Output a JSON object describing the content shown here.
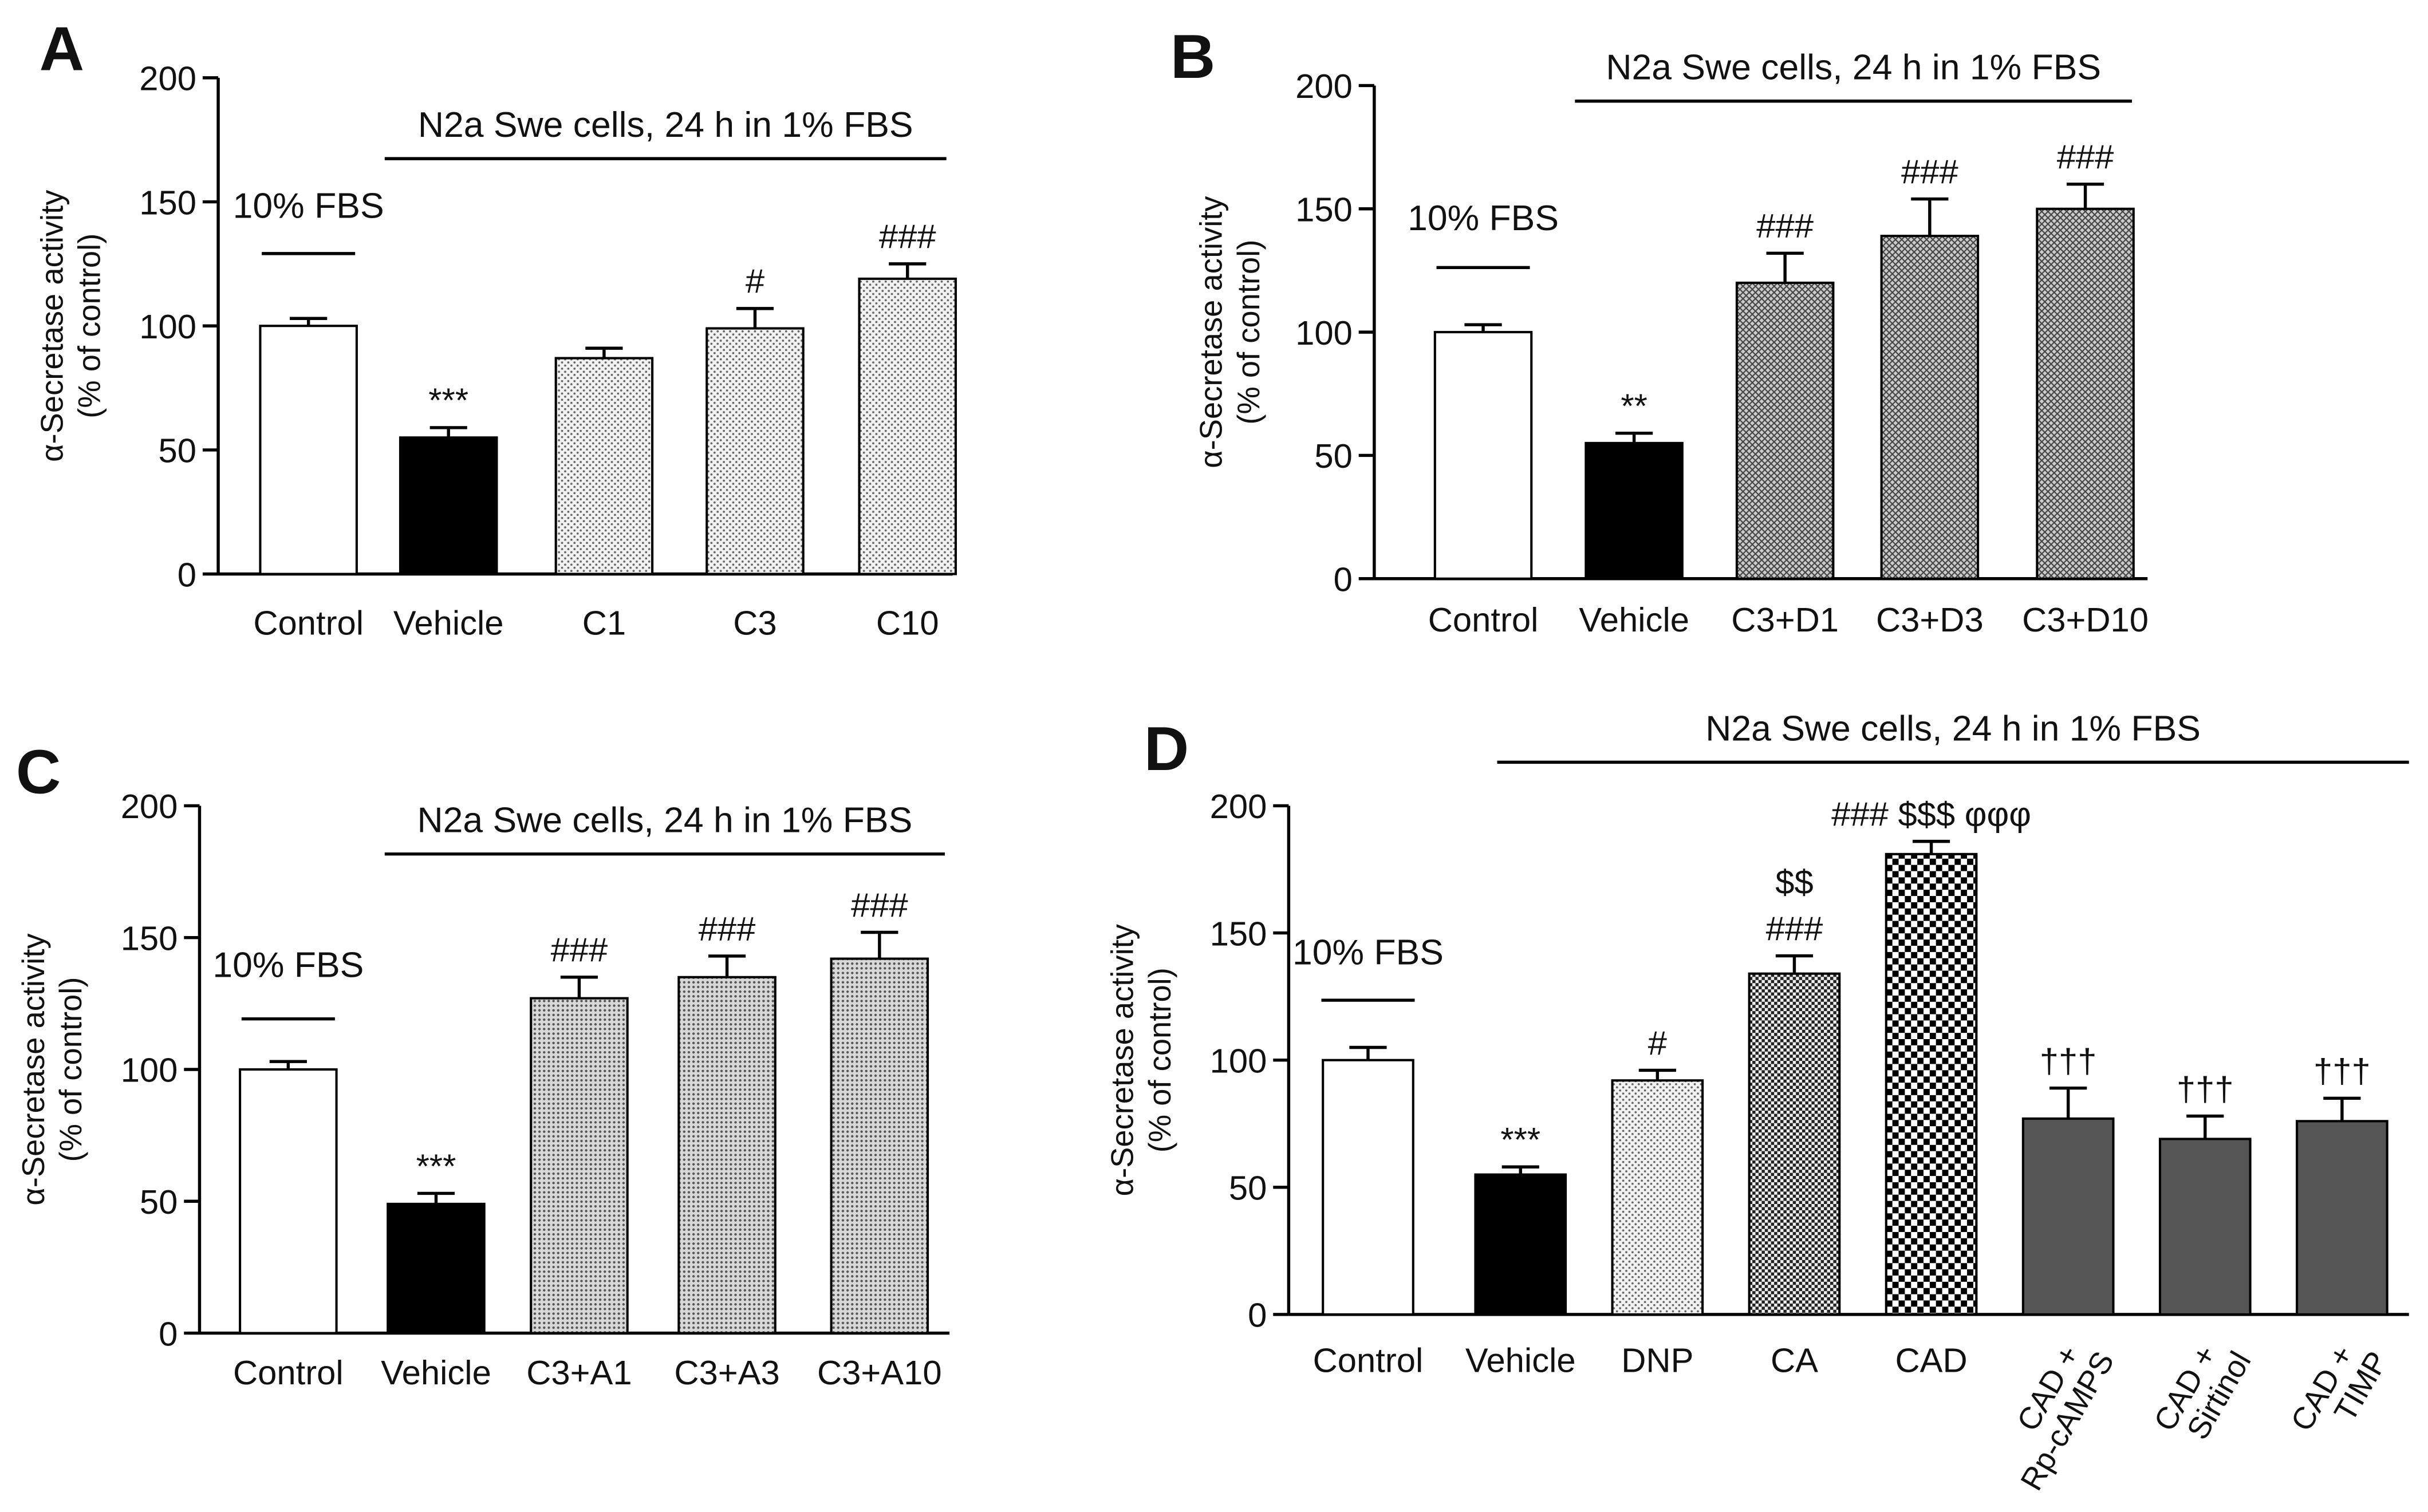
{
  "chart_data": [
    {
      "panel": "A",
      "type": "bar",
      "ylabel": "α-Secretase activity",
      "ylabel2": "(% of control)",
      "ylim": [
        0,
        200
      ],
      "yticks": [
        0,
        50,
        100,
        150,
        200
      ],
      "bracket_label": "N2a Swe cells, 24 h in 1% FBS",
      "control_label": "10% FBS",
      "categories": [
        "Control",
        "Vehicle",
        "C1",
        "C3",
        "C10"
      ],
      "values": [
        100,
        55,
        87,
        99,
        119
      ],
      "errors": [
        3,
        4,
        4,
        8,
        6
      ],
      "annotations": [
        "",
        "***",
        "",
        "#",
        "###"
      ],
      "styles": [
        "white",
        "black",
        "dots",
        "dots",
        "dots"
      ]
    },
    {
      "panel": "B",
      "type": "bar",
      "ylabel": "α-Secretase activity",
      "ylabel2": "(% of control)",
      "ylim": [
        0,
        200
      ],
      "yticks": [
        0,
        50,
        100,
        150,
        200
      ],
      "bracket_label": "N2a Swe cells, 24 h in 1% FBS",
      "control_label": "10% FBS",
      "categories": [
        "Control",
        "Vehicle",
        "C3+D1",
        "C3+D3",
        "C3+D10"
      ],
      "values": [
        100,
        55,
        120,
        139,
        150
      ],
      "errors": [
        3,
        4,
        12,
        15,
        10
      ],
      "annotations": [
        "",
        "**",
        "###",
        "###",
        "###"
      ],
      "styles": [
        "white",
        "black",
        "crosshatch",
        "crosshatch",
        "crosshatch"
      ]
    },
    {
      "panel": "C",
      "type": "bar",
      "ylabel": "α-Secretase activity",
      "ylabel2": "(% of control)",
      "ylim": [
        0,
        200
      ],
      "yticks": [
        0,
        50,
        100,
        150,
        200
      ],
      "bracket_label": "N2a Swe cells, 24 h in 1% FBS",
      "control_label": "10% FBS",
      "categories": [
        "Control",
        "Vehicle",
        "C3+A1",
        "C3+A3",
        "C3+A10"
      ],
      "values": [
        100,
        49,
        127,
        135,
        142
      ],
      "errors": [
        3,
        4,
        8,
        8,
        10
      ],
      "annotations": [
        "",
        "***",
        "###",
        "###",
        "###"
      ],
      "styles": [
        "white",
        "black",
        "densedots",
        "densedots",
        "densedots"
      ]
    },
    {
      "panel": "D",
      "type": "bar",
      "ylabel": "α-Secretase activity",
      "ylabel2": "(% of control)",
      "ylim": [
        0,
        200
      ],
      "yticks": [
        0,
        50,
        100,
        150,
        200
      ],
      "bracket_label": "N2a Swe cells, 24 h in 1% FBS",
      "control_label": "10% FBS",
      "categories": [
        "Control",
        "Vehicle",
        "DNP",
        "CA",
        "CAD",
        "CAD +|Rp-cAMPS",
        "CAD +|Sirtinol",
        "CAD +|TIMP"
      ],
      "values": [
        100,
        55,
        92,
        134,
        181,
        77,
        69,
        76
      ],
      "errors": [
        5,
        3,
        4,
        7,
        5,
        12,
        9,
        9
      ],
      "annotations": [
        "",
        "***",
        "#",
        "$$|###",
        "### $$$ φφφ",
        "†††",
        "†††",
        "†††"
      ],
      "styles": [
        "white",
        "black",
        "dots",
        "finechecker",
        "checker",
        "gray",
        "gray",
        "gray"
      ]
    }
  ]
}
